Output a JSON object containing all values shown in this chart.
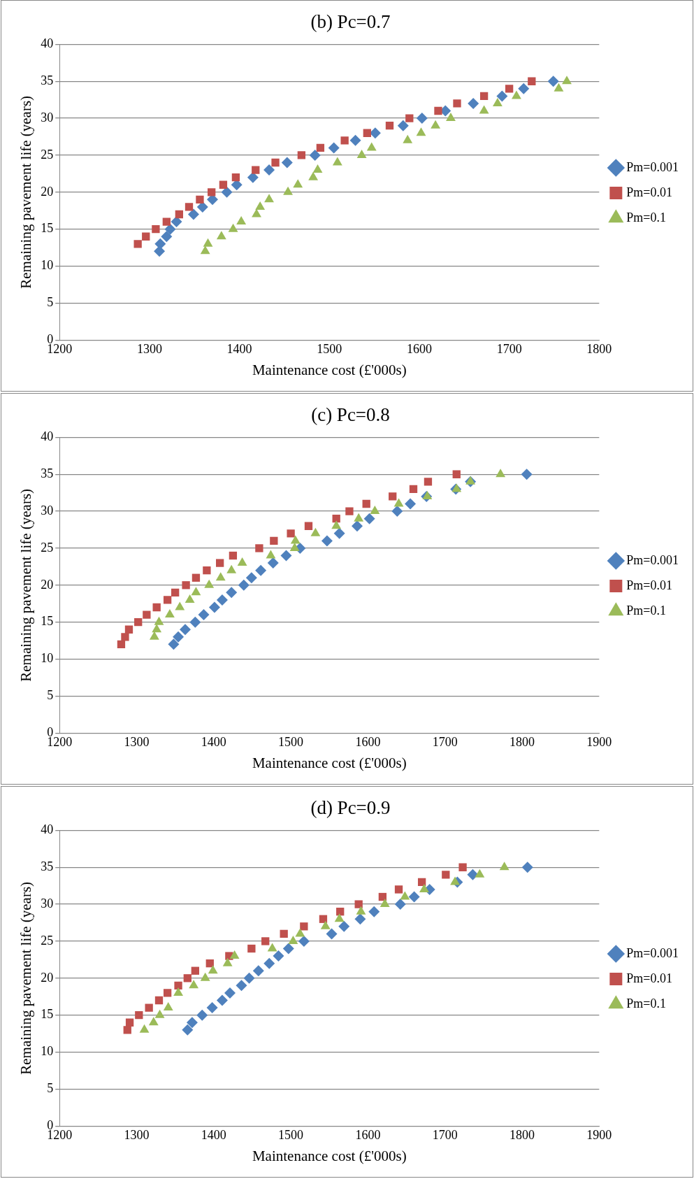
{
  "chart_data": [
    {
      "type": "scatter",
      "title": "(b) Pc=0.7",
      "xlabel": "Maintenance cost (£'000s)",
      "ylabel": "Remaining pavement life (years)",
      "xlim": [
        1200,
        1800
      ],
      "xticks": [
        1200,
        1300,
        1400,
        1500,
        1600,
        1700,
        1800
      ],
      "ylim": [
        0,
        40
      ],
      "yticks": [
        0,
        5,
        10,
        15,
        20,
        25,
        30,
        35,
        40
      ],
      "grid": "y",
      "legend": "right",
      "series": [
        {
          "name": "Pm=0.001",
          "color": "#4f81bd",
          "marker": "diamond",
          "x": [
            1311,
            1312,
            1319,
            1323,
            1330,
            1349,
            1359,
            1370,
            1386,
            1397,
            1415,
            1433,
            1453,
            1484,
            1505,
            1529,
            1551,
            1582,
            1603,
            1629,
            1660,
            1692,
            1716,
            1749
          ],
          "values": [
            12,
            13,
            14,
            15,
            16,
            17,
            18,
            19,
            20,
            21,
            22,
            23,
            24,
            25,
            26,
            27,
            28,
            29,
            30,
            31,
            32,
            33,
            34,
            35
          ]
        },
        {
          "name": "Pm=0.01",
          "color": "#c0504d",
          "marker": "square",
          "x": [
            1287,
            1296,
            1307,
            1319,
            1333,
            1344,
            1356,
            1369,
            1382,
            1396,
            1418,
            1440,
            1469,
            1490,
            1517,
            1542,
            1567,
            1589,
            1621,
            1642,
            1672,
            1700,
            1725
          ],
          "values": [
            13,
            14,
            15,
            16,
            17,
            18,
            19,
            20,
            21,
            22,
            23,
            24,
            25,
            26,
            27,
            28,
            29,
            30,
            31,
            32,
            33,
            34,
            35
          ]
        },
        {
          "name": "Pm=0.1",
          "color": "#9bbb59",
          "marker": "triangle",
          "x": [
            1362,
            1365,
            1380,
            1393,
            1402,
            1419,
            1423,
            1433,
            1454,
            1465,
            1482,
            1487,
            1509,
            1536,
            1547,
            1587,
            1602,
            1618,
            1635,
            1672,
            1687,
            1708,
            1755,
            1764
          ],
          "values": [
            12,
            13,
            14,
            15,
            16,
            17,
            18,
            19,
            20,
            21,
            22,
            23,
            24,
            25,
            26,
            27,
            28,
            29,
            30,
            31,
            32,
            33,
            34,
            35
          ]
        }
      ]
    },
    {
      "type": "scatter",
      "title": "(c) Pc=0.8",
      "xlabel": "Maintenance cost (£'000s)",
      "ylabel": "Remaining pavement life (years)",
      "xlim": [
        1200,
        1900
      ],
      "xticks": [
        1200,
        1300,
        1400,
        1500,
        1600,
        1700,
        1800,
        1900
      ],
      "ylim": [
        0,
        40
      ],
      "yticks": [
        0,
        5,
        10,
        15,
        20,
        25,
        30,
        35,
        40
      ],
      "grid": "y",
      "legend": "right",
      "series": [
        {
          "name": "Pm=0.001",
          "color": "#4f81bd",
          "marker": "diamond",
          "x": [
            1348,
            1354,
            1363,
            1376,
            1387,
            1401,
            1411,
            1423,
            1439,
            1449,
            1461,
            1477,
            1494,
            1512,
            1547,
            1563,
            1586,
            1602,
            1638,
            1655,
            1676,
            1714,
            1733,
            1806
          ],
          "values": [
            12,
            13,
            14,
            15,
            16,
            17,
            18,
            19,
            20,
            21,
            22,
            23,
            24,
            25,
            26,
            27,
            28,
            29,
            30,
            31,
            32,
            33,
            34,
            35
          ]
        },
        {
          "name": "Pm=0.01",
          "color": "#c0504d",
          "marker": "square",
          "x": [
            1280,
            1285,
            1290,
            1302,
            1313,
            1326,
            1340,
            1350,
            1364,
            1377,
            1391,
            1408,
            1425,
            1459,
            1478,
            1500,
            1523,
            1559,
            1576,
            1598,
            1632,
            1659,
            1678,
            1715
          ],
          "values": [
            12,
            13,
            14,
            15,
            16,
            17,
            18,
            19,
            20,
            21,
            22,
            23,
            24,
            25,
            26,
            27,
            28,
            29,
            30,
            31,
            32,
            33,
            34,
            35
          ]
        },
        {
          "name": "Pm=0.1",
          "color": "#9bbb59",
          "marker": "triangle",
          "x": [
            1323,
            1326,
            1329,
            1343,
            1356,
            1369,
            1377,
            1394,
            1409,
            1423,
            1437,
            1474,
            1505,
            1506,
            1532,
            1559,
            1588,
            1609,
            1640,
            1677,
            1715,
            1733,
            1772
          ],
          "values": [
            13,
            14,
            15,
            16,
            17,
            18,
            19,
            20,
            21,
            22,
            23,
            24,
            25,
            26,
            27,
            28,
            29,
            30,
            31,
            32,
            33,
            34,
            35
          ]
        }
      ]
    },
    {
      "type": "scatter",
      "title": "(d) Pc=0.9",
      "xlabel": "Maintenance cost (£'000s)",
      "ylabel": "Remaining pavement life (years)",
      "xlim": [
        1200,
        1900
      ],
      "xticks": [
        1200,
        1300,
        1400,
        1500,
        1600,
        1700,
        1800,
        1900
      ],
      "ylim": [
        0,
        40
      ],
      "yticks": [
        0,
        5,
        10,
        15,
        20,
        25,
        30,
        35,
        40
      ],
      "grid": "y",
      "legend": "right",
      "series": [
        {
          "name": "Pm=0.001",
          "color": "#4f81bd",
          "marker": "diamond",
          "x": [
            1366,
            1372,
            1385,
            1398,
            1411,
            1421,
            1436,
            1446,
            1458,
            1472,
            1484,
            1497,
            1517,
            1553,
            1569,
            1590,
            1608,
            1642,
            1660,
            1680,
            1716,
            1736,
            1807
          ],
          "values": [
            13,
            14,
            15,
            16,
            17,
            18,
            19,
            20,
            21,
            22,
            23,
            24,
            25,
            26,
            27,
            28,
            29,
            30,
            31,
            32,
            33,
            34,
            35
          ]
        },
        {
          "name": "Pm=0.01",
          "color": "#c0504d",
          "marker": "square",
          "x": [
            1288,
            1291,
            1303,
            1316,
            1329,
            1340,
            1354,
            1366,
            1376,
            1395,
            1420,
            1449,
            1467,
            1491,
            1517,
            1542,
            1564,
            1588,
            1619,
            1640,
            1670,
            1701,
            1723
          ],
          "values": [
            13,
            14,
            15,
            16,
            17,
            18,
            19,
            20,
            21,
            22,
            23,
            24,
            25,
            26,
            27,
            28,
            29,
            30,
            31,
            32,
            33,
            34,
            35
          ]
        },
        {
          "name": "Pm=0.1",
          "color": "#9bbb59",
          "marker": "triangle",
          "x": [
            1310,
            1322,
            1330,
            1341,
            1354,
            1374,
            1389,
            1399,
            1418,
            1427,
            1476,
            1503,
            1512,
            1545,
            1563,
            1591,
            1622,
            1648,
            1673,
            1713,
            1745,
            1777
          ],
          "values": [
            13,
            14,
            15,
            16,
            18,
            19,
            20,
            21,
            22,
            23,
            24,
            25,
            26,
            27,
            28,
            29,
            30,
            31,
            32,
            33,
            34,
            35
          ]
        }
      ]
    }
  ]
}
